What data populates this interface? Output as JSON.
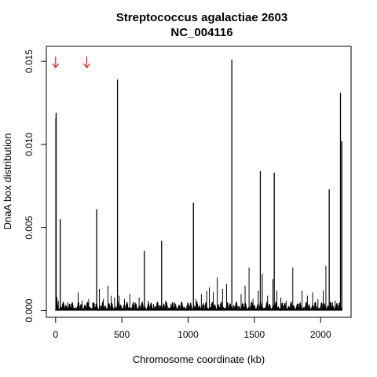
{
  "chart_data": {
    "type": "bar",
    "title": "Streptococcus agalactiae 2603",
    "subtitle": "NC_004116",
    "xlabel": "Chromosome coordinate (kb)",
    "ylabel": "DnaA box distribution",
    "xlim": [
      -70,
      2230
    ],
    "ylim": [
      -0.0004,
      0.0159
    ],
    "xticks": [
      0,
      500,
      1000,
      1500,
      2000
    ],
    "xtick_labels": [
      "0",
      "500",
      "1000",
      "1500",
      "2000"
    ],
    "yticks": [
      0.0,
      0.005,
      0.01,
      0.015
    ],
    "ytick_labels": [
      "0.000",
      "0.005",
      "0.010",
      "0.015"
    ],
    "grid": false,
    "bar_color": "#000000",
    "arrow_color": "#e8142a",
    "arrow_positions_kb": [
      0,
      235
    ],
    "spikes": {
      "x": [
        2,
        4,
        35,
        310,
        467,
        670,
        800,
        1040,
        1330,
        1545,
        1650,
        2065,
        2150,
        2160
      ],
      "values": [
        0.0116,
        0.0119,
        0.0055,
        0.0061,
        0.0139,
        0.0036,
        0.0042,
        0.0065,
        0.0151,
        0.0084,
        0.0083,
        0.0073,
        0.0131,
        0.0102
      ]
    },
    "minor_peaks": {
      "x": [
        10,
        20,
        60,
        90,
        120,
        170,
        200,
        250,
        280,
        330,
        360,
        395,
        420,
        445,
        480,
        520,
        560,
        600,
        630,
        700,
        740,
        770,
        830,
        870,
        900,
        950,
        990,
        1020,
        1060,
        1100,
        1140,
        1160,
        1190,
        1220,
        1260,
        1290,
        1360,
        1400,
        1430,
        1460,
        1490,
        1530,
        1560,
        1600,
        1640,
        1670,
        1700,
        1740,
        1790,
        1830,
        1860,
        1900,
        1940,
        1980,
        2020,
        2040,
        2090,
        2110
      ],
      "values": [
        0.0008,
        0.0006,
        0.0004,
        0.0005,
        0.0003,
        0.0011,
        0.0006,
        0.0007,
        0.0005,
        0.0013,
        0.0007,
        0.0015,
        0.0009,
        0.0008,
        0.0009,
        0.0007,
        0.001,
        0.0005,
        0.0008,
        0.0006,
        0.0004,
        0.0005,
        0.0006,
        0.0004,
        0.0005,
        0.0004,
        0.0003,
        0.0005,
        0.0007,
        0.001,
        0.0012,
        0.0014,
        0.0011,
        0.002,
        0.0013,
        0.0016,
        0.0004,
        0.001,
        0.0015,
        0.0026,
        0.0007,
        0.0012,
        0.0022,
        0.0009,
        0.0019,
        0.0012,
        0.0008,
        0.0006,
        0.0026,
        0.0004,
        0.0012,
        0.0009,
        0.0011,
        0.0007,
        0.0012,
        0.0027,
        0.0005,
        0.0006
      ]
    }
  }
}
